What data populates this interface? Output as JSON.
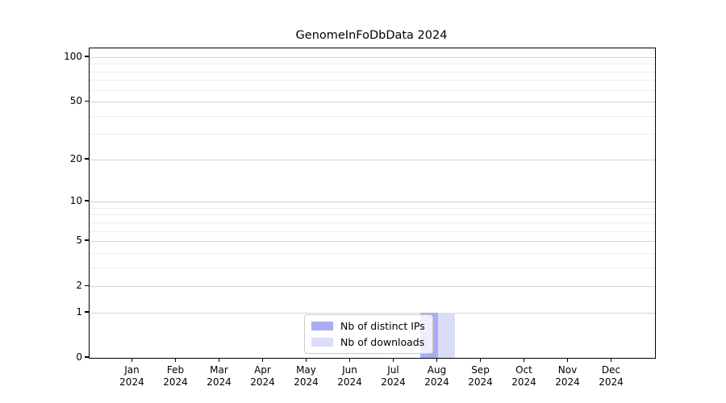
{
  "chart_data": {
    "type": "bar",
    "title": "GenomeInFoDbData 2024",
    "categories": [
      "Jan 2024",
      "Feb 2024",
      "Mar 2024",
      "Apr 2024",
      "May 2024",
      "Jun 2024",
      "Jul 2024",
      "Aug 2024",
      "Sep 2024",
      "Oct 2024",
      "Nov 2024",
      "Dec 2024"
    ],
    "series": [
      {
        "name": "Nb of distinct IPs",
        "color": "#a9acf2",
        "values": [
          0,
          0,
          0,
          0,
          0,
          0,
          0,
          1,
          0,
          0,
          0,
          0
        ]
      },
      {
        "name": "Nb of downloads",
        "color": "#dadcf8",
        "values": [
          0,
          0,
          0,
          0,
          0,
          0,
          0,
          1,
          0,
          0,
          0,
          0
        ]
      }
    ],
    "yscale": "log1p",
    "yticks": [
      0,
      1,
      2,
      5,
      10,
      20,
      50,
      100
    ],
    "ylim": [
      0,
      115
    ],
    "xlabel": "",
    "ylabel": "",
    "grid": "horizontal",
    "legend_position": "inside-bottom-center",
    "colors": {
      "major_grid": "#d4d4d4",
      "minor_grid": "#ececec",
      "axis": "#000000",
      "background": "#ffffff"
    }
  }
}
